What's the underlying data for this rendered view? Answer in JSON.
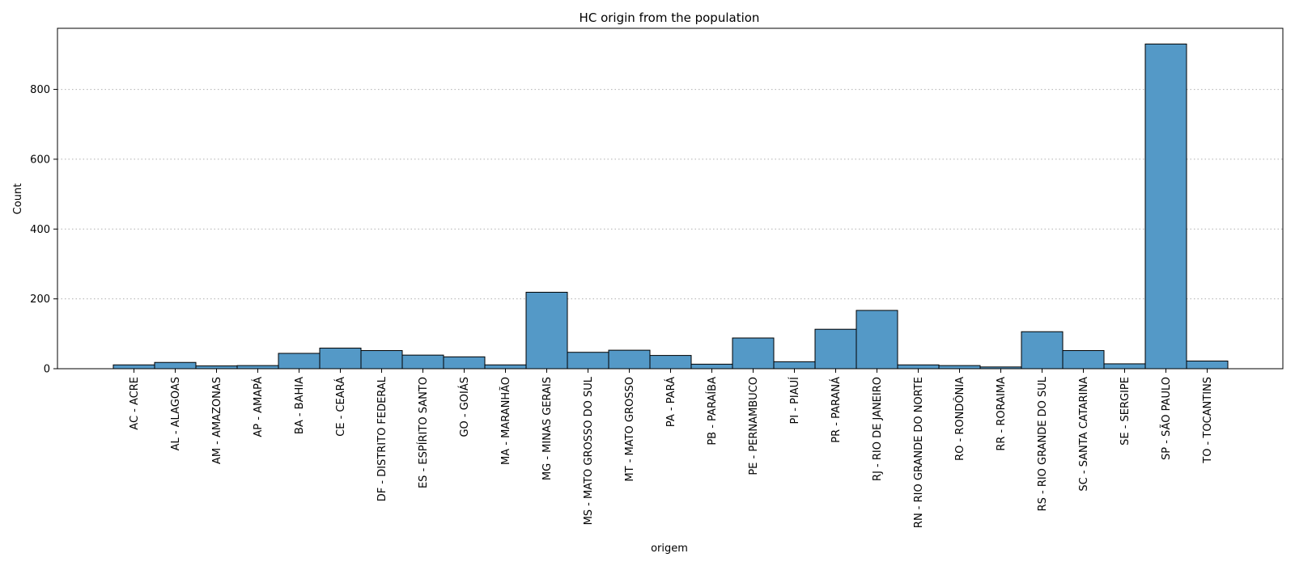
{
  "chart_data": {
    "type": "bar",
    "title": "HC origin from the population",
    "xlabel": "origem",
    "ylabel": "Count",
    "ylim": [
      0,
      975
    ],
    "yticks": [
      0,
      200,
      400,
      600,
      800
    ],
    "grid": "y-dotted",
    "bar_color": "#5499C7",
    "categories": [
      "AC - ACRE",
      "AL - ALAGOAS",
      "AM - AMAZONAS",
      "AP - AMAPÁ",
      "BA - BAHIA",
      "CE - CEARÁ",
      "DF - DISTRITO FEDERAL",
      "ES - ESPÍRITO SANTO",
      "GO - GOIÁS",
      "MA - MARANHÃO",
      "MG - MINAS GERAIS",
      "MS - MATO GROSSO DO SUL",
      "MT - MATO GROSSO",
      "PA - PARÁ",
      "PB - PARAÍBA",
      "PE - PERNAMBUCO",
      "PI - PIAUÍ",
      "PR - PARANÁ",
      "RJ - RIO DE JANEIRO",
      "RN - RIO GRANDE DO NORTE",
      "RO - RONDÔNIA",
      "RR - RORAIMA",
      "RS - RIO GRANDE DO SUL",
      "SC - SANTA CATARINA",
      "SE - SERGIPE",
      "SP - SÃO PAULO",
      "TO - TOCANTINS"
    ],
    "values": [
      11,
      18,
      8,
      9,
      44,
      59,
      52,
      39,
      34,
      11,
      219,
      47,
      53,
      38,
      13,
      88,
      20,
      113,
      167,
      11,
      9,
      5,
      106,
      52,
      14,
      930,
      22
    ]
  }
}
